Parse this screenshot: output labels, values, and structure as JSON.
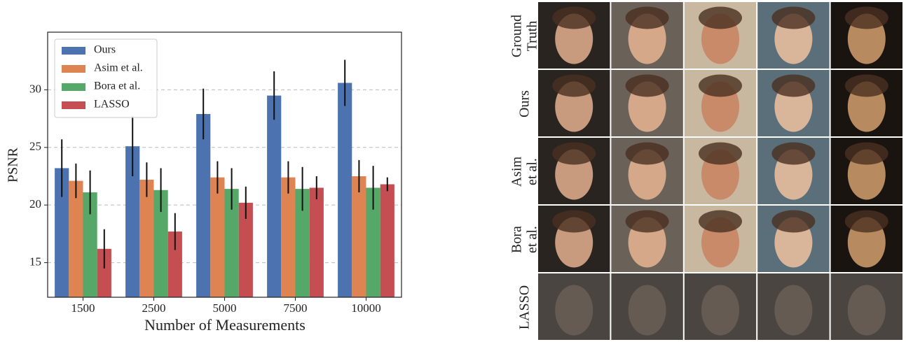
{
  "chart_data": {
    "type": "bar",
    "x_label": "Number of Measurements",
    "y_label": "PSNR",
    "categories": [
      "1500",
      "2500",
      "5000",
      "7500",
      "10000"
    ],
    "series": [
      {
        "name": "Ours",
        "color": "#4c72b0",
        "values": [
          23.2,
          25.1,
          27.9,
          29.5,
          30.6
        ],
        "errors": [
          2.5,
          2.6,
          2.2,
          2.1,
          2.0
        ]
      },
      {
        "name": "Asim et al.",
        "color": "#dd8452",
        "values": [
          22.1,
          22.2,
          22.4,
          22.4,
          22.5
        ],
        "errors": [
          1.5,
          1.5,
          1.4,
          1.4,
          1.4
        ]
      },
      {
        "name": "Bora et al.",
        "color": "#55a868",
        "values": [
          21.1,
          21.3,
          21.4,
          21.4,
          21.5
        ],
        "errors": [
          1.9,
          1.9,
          1.8,
          1.9,
          1.9
        ]
      },
      {
        "name": "LASSO",
        "color": "#c44e52",
        "values": [
          16.2,
          17.7,
          20.2,
          21.5,
          21.8
        ],
        "errors": [
          1.7,
          1.6,
          1.4,
          1.0,
          0.6
        ]
      }
    ],
    "ylim": [
      12,
      35
    ],
    "yticks": [
      15,
      20,
      25,
      30
    ],
    "grid": true,
    "legend": "upper-left"
  },
  "image_grid": {
    "row_labels": [
      [
        "Ground",
        "Truth"
      ],
      [
        "Ours"
      ],
      [
        "Asim",
        "et al."
      ],
      [
        "Bora",
        "et al."
      ],
      [
        "LASSO"
      ]
    ]
  }
}
